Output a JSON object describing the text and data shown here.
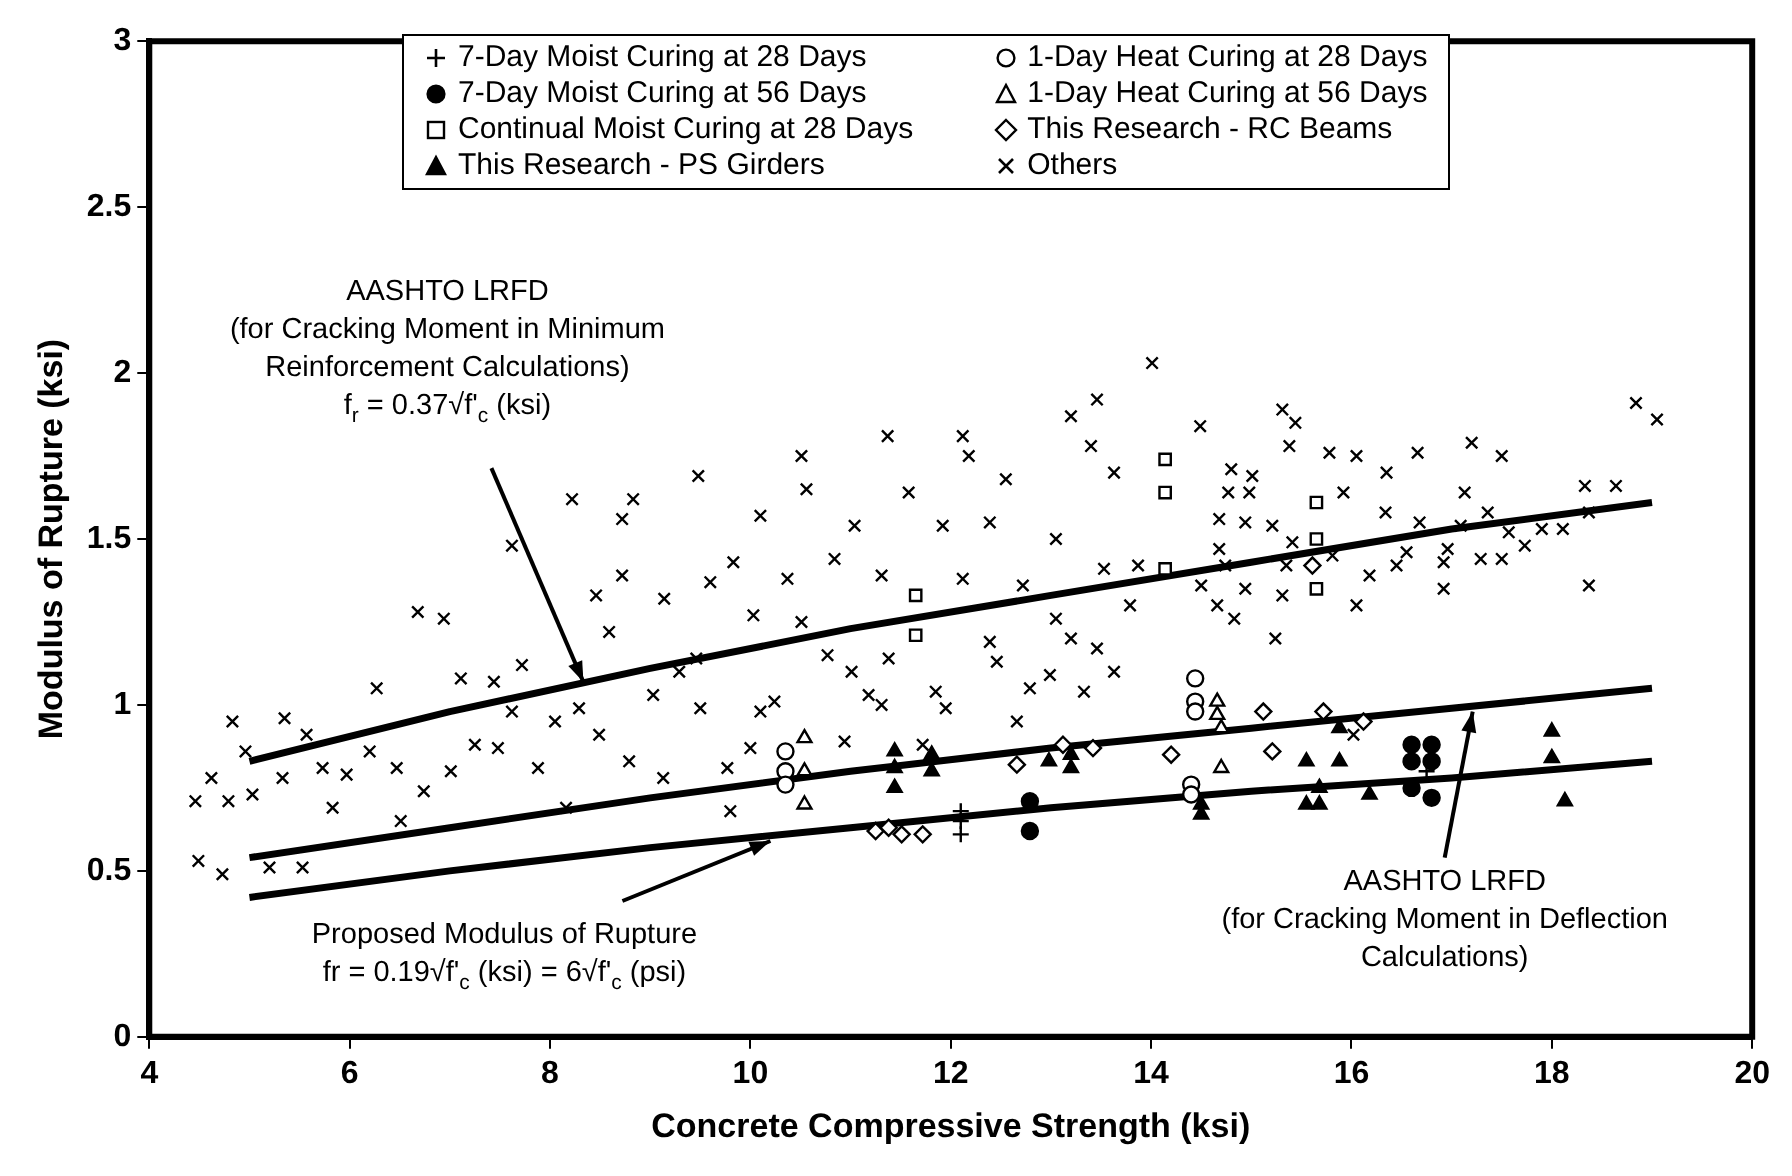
{
  "chart_data": {
    "type": "scatter",
    "xlabel": "Concrete Compressive Strength (ksi)",
    "ylabel": "Modulus of Rupture (ksi)",
    "xlim": [
      4,
      20
    ],
    "xticks": [
      4,
      6,
      8,
      10,
      12,
      14,
      16,
      18,
      20
    ],
    "ylim": [
      0,
      3
    ],
    "yticks": [
      0,
      0.5,
      1,
      1.5,
      2,
      2.5,
      3
    ],
    "legend": "top",
    "annotations": [
      "AASHTO LRFD\n(for Cracking Moment in Minimum\nReinforcement Calculations)\nf$_{r}$ = 0.37√f'$_{c}$ (ksi)",
      {
        "text": "Proposed Modulus of Rupture\nfr = 0.19√f'$_{c}$ (ksi) = 6√f'$_{c}$ (psi)",
        "x": 10.2,
        "y": 0.59
      },
      {
        "text": "AASHTO LRFD\n(for Cracking Moment in Deflection\nCalculations)",
        "x": 17.21,
        "y": 0.98
      }
    ],
    "series": [
      {
        "name": "7-Day Moist Curing at 28 Days",
        "color": "#000000",
        "marker": "plus",
        "x": [
          12.1,
          12.1,
          12.1,
          16.75
        ],
        "values": [
          0.68,
          0.65,
          0.61,
          0.8
        ]
      },
      {
        "name": "1-Day Heat Curing at 28 Days",
        "color": "#000000",
        "marker": "circle-open",
        "x": [
          10.35,
          10.35,
          10.35,
          14.44,
          14.44,
          14.44,
          14.4,
          14.4
        ],
        "values": [
          0.86,
          0.8,
          0.76,
          1.08,
          1.01,
          0.98,
          0.76,
          0.73
        ]
      },
      {
        "name": "7-Day Moist Curing at 56 Days",
        "color": "#000000",
        "marker": "circle",
        "x": [
          12.79,
          12.79,
          16.6,
          16.8,
          16.6,
          16.8,
          16.6,
          16.8
        ],
        "values": [
          0.71,
          0.62,
          0.88,
          0.88,
          0.83,
          0.83,
          0.75,
          0.72
        ]
      },
      {
        "name": "1-Day Heat Curing at 56 Days",
        "color": "#000000",
        "marker": "triangle-open",
        "x": [
          10.54,
          10.54,
          10.54,
          14.66,
          14.66,
          14.7,
          14.7
        ],
        "values": [
          0.9,
          0.8,
          0.7,
          1.01,
          0.97,
          0.93,
          0.81
        ]
      },
      {
        "name": "Continual Moist Curing at 28 Days",
        "color": "#000000",
        "marker": "square-open",
        "x": [
          11.65,
          11.65,
          14.14,
          14.14,
          14.14,
          15.65,
          15.65,
          15.65
        ],
        "values": [
          1.33,
          1.21,
          1.74,
          1.64,
          1.41,
          1.61,
          1.5,
          1.35
        ]
      },
      {
        "name": "This Research - RC Beams",
        "color": "#000000",
        "marker": "diamond-open",
        "x": [
          11.25,
          11.38,
          11.51,
          11.72,
          12.66,
          13.12,
          13.42,
          14.2,
          15.12,
          15.21,
          15.72,
          16.12,
          15.61
        ],
        "values": [
          0.62,
          0.63,
          0.61,
          0.61,
          0.82,
          0.88,
          0.87,
          0.85,
          0.98,
          0.86,
          0.98,
          0.95,
          1.42
        ]
      },
      {
        "name": "This Research - PS Girders",
        "color": "#000000",
        "marker": "triangle",
        "x": [
          11.44,
          11.44,
          11.44,
          11.81,
          11.81,
          12.98,
          13.2,
          13.2,
          14.5,
          14.5,
          15.55,
          15.55,
          15.88,
          15.88,
          15.68,
          15.68,
          16.18,
          18.0,
          18.0,
          18.13
        ],
        "values": [
          0.86,
          0.81,
          0.75,
          0.85,
          0.8,
          0.83,
          0.85,
          0.81,
          0.7,
          0.67,
          0.83,
          0.7,
          0.83,
          0.93,
          0.75,
          0.7,
          0.73,
          0.92,
          0.84,
          0.71
        ]
      },
      {
        "name": "Others",
        "color": "#000000",
        "marker": "cross",
        "x": [
          8.22,
          8.83,
          8.72,
          7.62,
          8.72,
          8.46,
          9.14,
          6.68,
          6.94,
          8.59,
          6.27,
          7.11,
          7.44,
          7.72,
          7.62,
          4.83,
          5.35,
          5.57,
          4.96,
          4.62,
          4.46,
          4.79,
          5.03,
          5.33,
          5.73,
          5.97,
          6.2,
          6.47,
          6.74,
          7.01,
          7.25,
          7.48,
          7.88,
          8.05,
          8.29,
          8.49,
          8.79,
          9.13,
          5.83,
          6.51,
          8.16,
          4.49,
          4.73,
          5.2,
          5.53,
          9.03,
          9.29,
          14.01,
          13.46,
          13.2,
          11.37,
          12.12,
          10.51,
          12.18,
          9.48,
          10.56,
          10.1,
          12.55,
          13.4,
          13.63,
          11.04,
          11.58,
          11.92,
          12.39,
          9.83,
          9.6,
          10.37,
          10.84,
          11.31,
          12.12,
          12.72,
          13.05,
          13.53,
          13.87,
          9.46,
          10.03,
          10.51,
          10.77,
          11.38,
          12.39,
          12.46,
          13.05,
          13.2,
          13.46,
          13.79,
          13.63,
          12.99,
          12.79,
          13.33,
          11.01,
          11.18,
          11.31,
          11.85,
          11.95,
          10.1,
          10.24,
          10.0,
          9.77,
          9.8,
          10.94,
          11.72,
          12.66,
          9.5,
          18.84,
          19.05,
          14.49,
          15.31,
          15.44,
          17.2,
          17.5,
          16.66,
          14.8,
          15.01,
          15.38,
          15.78,
          16.05,
          16.35,
          15.92,
          17.13,
          14.77,
          14.98,
          18.33,
          18.64,
          16.34,
          17.36,
          18.37,
          14.68,
          15.21,
          14.94,
          16.68,
          17.09,
          17.57,
          17.9,
          18.11,
          17.73,
          16.55,
          16.96,
          14.68,
          15.41,
          15.81,
          17.29,
          17.5,
          16.45,
          16.92,
          16.92,
          14.74,
          15.35,
          16.18,
          18.37,
          14.5,
          14.94,
          15.31,
          16.05,
          14.66,
          14.83,
          15.24,
          16.02
        ],
        "values": [
          1.62,
          1.62,
          1.56,
          1.48,
          1.39,
          1.33,
          1.32,
          1.28,
          1.26,
          1.22,
          1.05,
          1.08,
          1.07,
          1.12,
          0.98,
          0.95,
          0.96,
          0.91,
          0.86,
          0.78,
          0.71,
          0.71,
          0.73,
          0.78,
          0.81,
          0.79,
          0.86,
          0.81,
          0.74,
          0.8,
          0.88,
          0.87,
          0.81,
          0.95,
          0.99,
          0.91,
          0.83,
          0.78,
          0.69,
          0.65,
          0.69,
          0.53,
          0.49,
          0.51,
          0.51,
          1.03,
          1.1,
          2.03,
          1.92,
          1.87,
          1.81,
          1.81,
          1.75,
          1.75,
          1.69,
          1.65,
          1.57,
          1.68,
          1.78,
          1.7,
          1.54,
          1.64,
          1.54,
          1.55,
          1.43,
          1.37,
          1.38,
          1.44,
          1.39,
          1.38,
          1.36,
          1.5,
          1.41,
          1.42,
          1.14,
          1.27,
          1.25,
          1.15,
          1.14,
          1.19,
          1.13,
          1.26,
          1.2,
          1.17,
          1.3,
          1.1,
          1.09,
          1.05,
          1.04,
          1.1,
          1.03,
          1.0,
          1.04,
          0.99,
          0.98,
          1.01,
          0.87,
          0.81,
          0.68,
          0.89,
          0.88,
          0.95,
          0.99,
          1.91,
          1.86,
          1.84,
          1.89,
          1.85,
          1.79,
          1.75,
          1.76,
          1.71,
          1.69,
          1.78,
          1.76,
          1.75,
          1.7,
          1.64,
          1.64,
          1.64,
          1.64,
          1.66,
          1.66,
          1.58,
          1.58,
          1.58,
          1.56,
          1.54,
          1.55,
          1.55,
          1.54,
          1.52,
          1.53,
          1.53,
          1.48,
          1.46,
          1.47,
          1.47,
          1.49,
          1.45,
          1.44,
          1.44,
          1.42,
          1.43,
          1.35,
          1.42,
          1.42,
          1.39,
          1.36,
          1.36,
          1.35,
          1.33,
          1.3,
          1.3,
          1.26,
          1.2,
          0.91
        ]
      },
      {
        "type": "line",
        "color": "#000000",
        "marker": "none",
        "x": [
          5,
          7,
          9,
          11,
          13,
          15,
          17,
          19
        ],
        "values": [
          0.83,
          0.98,
          1.11,
          1.23,
          1.33,
          1.43,
          1.53,
          1.61
        ]
      },
      {
        "type": "line",
        "color": "#000000",
        "marker": "none",
        "x": [
          5,
          7,
          9,
          11,
          13,
          15,
          17,
          19
        ],
        "values": [
          0.54,
          0.63,
          0.72,
          0.8,
          0.87,
          0.93,
          0.99,
          1.05
        ]
      },
      {
        "type": "line",
        "color": "#000000",
        "marker": "none",
        "x": [
          5,
          7,
          9,
          11,
          13,
          15,
          17,
          19
        ],
        "values": [
          0.42,
          0.5,
          0.57,
          0.63,
          0.69,
          0.74,
          0.78,
          0.83
        ]
      }
    ]
  }
}
